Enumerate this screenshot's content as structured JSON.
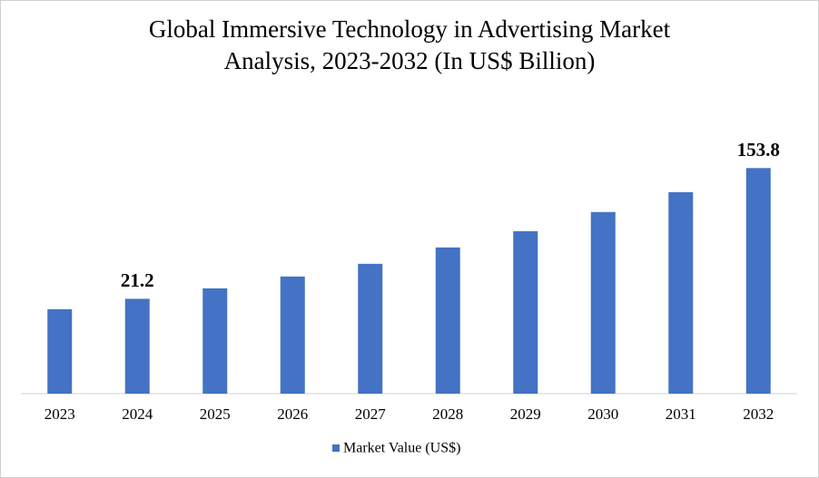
{
  "chart_data": {
    "type": "bar",
    "title": [
      "Global Immersive Technology in Advertising Market",
      "Analysis, 2023-2032 (In US$ Billion)"
    ],
    "categories": [
      "2023",
      "2024",
      "2025",
      "2026",
      "2027",
      "2028",
      "2029",
      "2030",
      "2031",
      "2032"
    ],
    "series": [
      {
        "name": "Market Value (US$)",
        "color": "#4472c4",
        "values": [
          10.6,
          21.2,
          31.8,
          43.8,
          56.7,
          73.3,
          89.8,
          109.2,
          129.4,
          153.8
        ],
        "value_labels": [
          null,
          "21.2",
          null,
          null,
          null,
          null,
          null,
          null,
          null,
          "153.8"
        ]
      }
    ],
    "ylim": [
      -75,
      155
    ],
    "legend": "bottom"
  }
}
